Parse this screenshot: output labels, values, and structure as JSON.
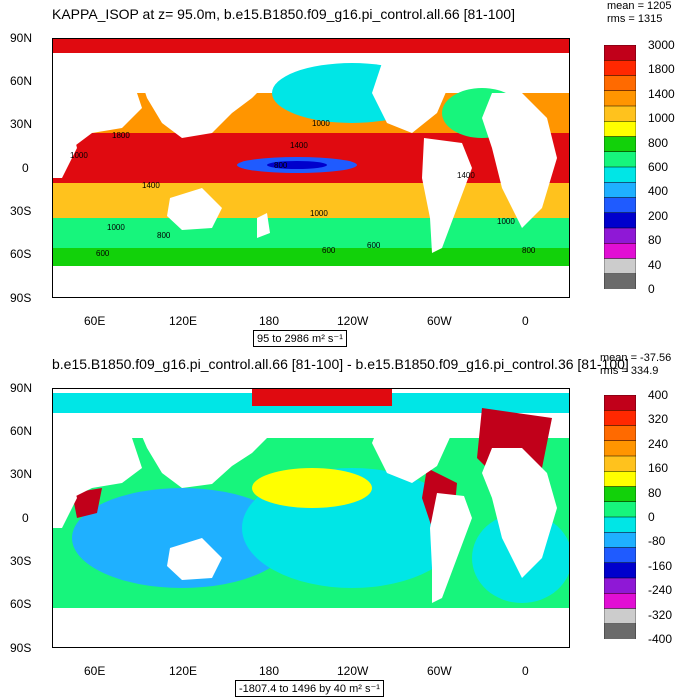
{
  "top": {
    "title": "KAPPA_ISOP at z=  95.0m, b.e15.B1850.f09_g16.pi_control.all.66 [81-100]",
    "stats": [
      "mean = 1205",
      "rms = 1315"
    ],
    "range": "95 to 2986 m² s⁻¹",
    "legend_values": [
      "3000",
      "1800",
      "1400",
      "1000",
      "800",
      "600",
      "400",
      "200",
      "80",
      "40",
      "0"
    ],
    "colors": [
      "#c1001a",
      "#ff2800",
      "#ff6a00",
      "#ff9500",
      "#ffc21d",
      "#ffff00",
      "#12d10a",
      "#17f57c",
      "#00e6e6",
      "#1fb0ff",
      "#1f5bff",
      "#0000cc",
      "#8f18d6",
      "#e10fd4",
      "#cccccc",
      "#6b6b6b"
    ],
    "contour_labels": [
      "1000",
      "1800",
      "1400",
      "1000",
      "800",
      "600",
      "1000",
      "1400",
      "800",
      "1000",
      "600",
      "600",
      "800",
      "1000",
      "1400"
    ]
  },
  "bottom": {
    "title": "b.e15.B1850.f09_g16.pi_control.all.66 [81-100] - b.e15.B1850.f09_g16.pi_control.36 [81-100]",
    "stats": [
      "mean = -37.56",
      "rms = 334.9"
    ],
    "range": "-1807.4 to 1496 by 40 m² s⁻¹",
    "legend_values": [
      "400",
      "320",
      "240",
      "160",
      "80",
      "0",
      "-80",
      "-160",
      "-240",
      "-320",
      "-400"
    ],
    "colors": [
      "#c1001a",
      "#ff2800",
      "#ff6a00",
      "#ff9500",
      "#ffc21d",
      "#ffff00",
      "#12d10a",
      "#17f57c",
      "#00e6e6",
      "#1fb0ff",
      "#1f5bff",
      "#0000cc",
      "#8f18d6",
      "#e10fd4",
      "#cccccc",
      "#6b6b6b"
    ]
  },
  "axes": {
    "lat_labels": [
      "90N",
      "60N",
      "30N",
      "0",
      "30S",
      "60S",
      "90S"
    ],
    "lon_labels": [
      "60E",
      "120E",
      "180",
      "120W",
      "60W",
      "0"
    ]
  }
}
